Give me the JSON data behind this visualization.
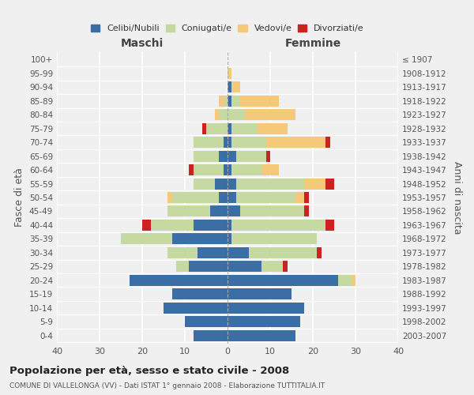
{
  "age_groups": [
    "0-4",
    "5-9",
    "10-14",
    "15-19",
    "20-24",
    "25-29",
    "30-34",
    "35-39",
    "40-44",
    "45-49",
    "50-54",
    "55-59",
    "60-64",
    "65-69",
    "70-74",
    "75-79",
    "80-84",
    "85-89",
    "90-94",
    "95-99",
    "100+"
  ],
  "birth_years": [
    "2003-2007",
    "1998-2002",
    "1993-1997",
    "1988-1992",
    "1983-1987",
    "1978-1982",
    "1973-1977",
    "1968-1972",
    "1963-1967",
    "1958-1962",
    "1953-1957",
    "1948-1952",
    "1943-1947",
    "1938-1942",
    "1933-1937",
    "1928-1932",
    "1923-1927",
    "1918-1922",
    "1913-1917",
    "1908-1912",
    "≤ 1907"
  ],
  "colors": {
    "celibi": "#3a6ea5",
    "coniugati": "#c5d9a0",
    "vedovi": "#f5c97a",
    "divorziati": "#cc2222"
  },
  "males": {
    "celibi": [
      8,
      10,
      15,
      13,
      23,
      9,
      7,
      13,
      8,
      4,
      2,
      3,
      1,
      2,
      1,
      0,
      0,
      0,
      0,
      0,
      0
    ],
    "coniugati": [
      0,
      0,
      0,
      0,
      0,
      3,
      7,
      12,
      10,
      10,
      11,
      5,
      7,
      6,
      7,
      5,
      2,
      1,
      0,
      0,
      0
    ],
    "vedovi": [
      0,
      0,
      0,
      0,
      0,
      0,
      0,
      0,
      0,
      0,
      1,
      0,
      0,
      0,
      0,
      0,
      1,
      1,
      0,
      0,
      0
    ],
    "divorziati": [
      0,
      0,
      0,
      0,
      0,
      0,
      0,
      0,
      2,
      0,
      0,
      0,
      1,
      0,
      0,
      1,
      0,
      0,
      0,
      0,
      0
    ]
  },
  "females": {
    "celibi": [
      16,
      17,
      18,
      15,
      26,
      8,
      5,
      1,
      1,
      3,
      2,
      2,
      1,
      2,
      1,
      1,
      0,
      1,
      1,
      0,
      0
    ],
    "coniugati": [
      0,
      0,
      0,
      0,
      3,
      5,
      16,
      20,
      22,
      15,
      14,
      16,
      7,
      7,
      8,
      6,
      4,
      2,
      0,
      0,
      0
    ],
    "vedovi": [
      0,
      0,
      0,
      0,
      1,
      0,
      0,
      0,
      0,
      0,
      2,
      5,
      4,
      0,
      14,
      7,
      12,
      9,
      2,
      1,
      0
    ],
    "divorziati": [
      0,
      0,
      0,
      0,
      0,
      1,
      1,
      0,
      2,
      1,
      1,
      2,
      0,
      1,
      1,
      0,
      0,
      0,
      0,
      0,
      0
    ]
  },
  "title": "Popolazione per età, sesso e stato civile - 2008",
  "subtitle": "COMUNE DI VALLELONGA (VV) - Dati ISTAT 1° gennaio 2008 - Elaborazione TUTTITALIA.IT",
  "xlabel_left": "Maschi",
  "xlabel_right": "Femmine",
  "ylabel_left": "Fasce di età",
  "ylabel_right": "Anni di nascita",
  "xlim": 40,
  "legend_labels": [
    "Celibi/Nubili",
    "Coniugati/e",
    "Vedovi/e",
    "Divorziati/e"
  ],
  "background_color": "#f0f0f0"
}
